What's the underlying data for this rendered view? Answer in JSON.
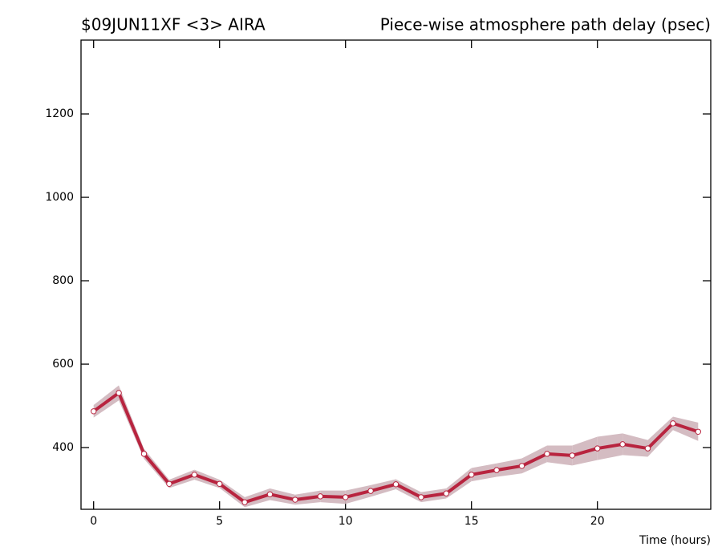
{
  "chart_data": {
    "type": "line",
    "title_left": "$09JUN11XF <3>  AIRA",
    "title": "Piece-wise atmosphere path delay (psec)",
    "x_label": "Time (hours)",
    "x": [
      0,
      1,
      2,
      3,
      4,
      5,
      6,
      7,
      8,
      9,
      10,
      11,
      12,
      13,
      14,
      15,
      16,
      17,
      18,
      19,
      20,
      21,
      22,
      23,
      24
    ],
    "series": [
      {
        "color": "#b8243f",
        "band_color": "#d4bcc2",
        "values": [
          487,
          531,
          385,
          313,
          335,
          313,
          269,
          288,
          275,
          283,
          281,
          296,
          312,
          281,
          290,
          335,
          346,
          356,
          385,
          381,
          398,
          408,
          398,
          458,
          438
        ],
        "errors": [
          15,
          18,
          12,
          10,
          12,
          10,
          12,
          14,
          12,
          14,
          16,
          14,
          12,
          12,
          12,
          16,
          16,
          18,
          20,
          24,
          28,
          26,
          20,
          16,
          22
        ]
      }
    ],
    "xlim": [
      -0.5,
      24.5
    ],
    "xticks": [
      0,
      5,
      10,
      15,
      20
    ],
    "ylim": [
      252,
      1377
    ],
    "yticks": [
      400,
      600,
      800,
      1000,
      1200
    ]
  }
}
